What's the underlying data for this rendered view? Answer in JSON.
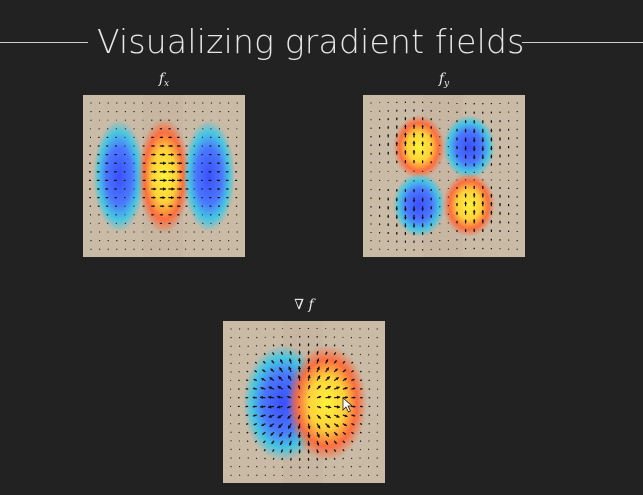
{
  "slide": {
    "title": "Visualizing gradient fields",
    "panels": [
      {
        "id": "fx",
        "label_main": "f",
        "label_sub": "x"
      },
      {
        "id": "fy",
        "label_main": "f",
        "label_sub": "y"
      },
      {
        "id": "grad",
        "label_main": "∇ f",
        "label_sub": ""
      }
    ]
  },
  "icons": {
    "cursor": "mouse-pointer-icon"
  },
  "colors": {
    "background": "#222222",
    "plot_background": "#c9bba6",
    "arrow": "#111111",
    "heat_low": "#4466ff",
    "heat_high": "#ffee33"
  }
}
